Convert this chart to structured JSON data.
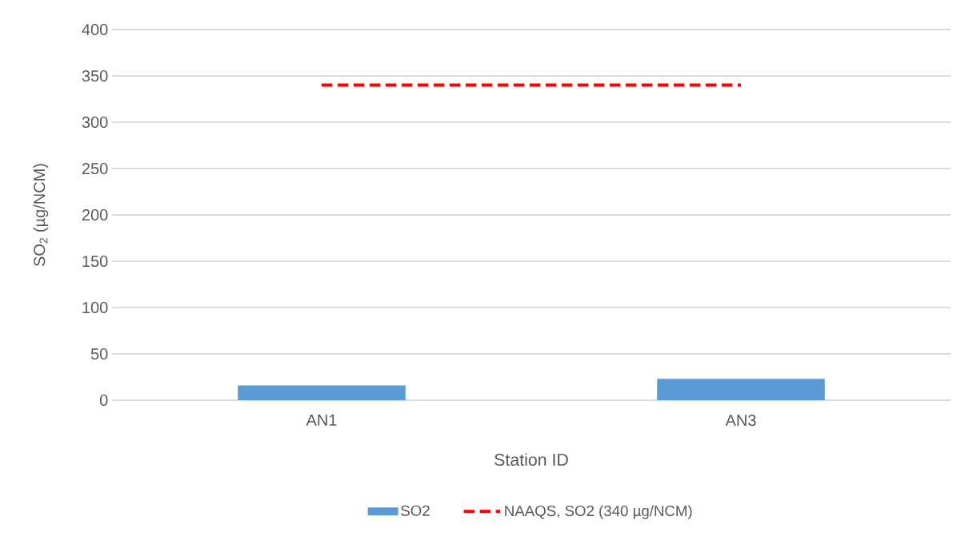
{
  "chart_data": {
    "type": "bar",
    "xlabel": "Station ID",
    "ylabel": "SO$_{2}$ (µg/NCM)",
    "categories": [
      "AN1",
      "AN3"
    ],
    "series": [
      {
        "name": "SO2",
        "color": "#5b9bd5",
        "values": [
          16,
          23
        ]
      },
      {
        "name": "NAAQS, SO2 (340 µg/NCM)",
        "type": "line",
        "color": "#ff0000",
        "line_style": "dashed",
        "marker": "none",
        "values": [
          340,
          340
        ]
      }
    ],
    "ylim": [
      0,
      400
    ],
    "yticks": [
      0,
      50,
      100,
      150,
      200,
      250,
      300,
      350,
      400
    ],
    "grid": "y",
    "legend": "bottom"
  }
}
